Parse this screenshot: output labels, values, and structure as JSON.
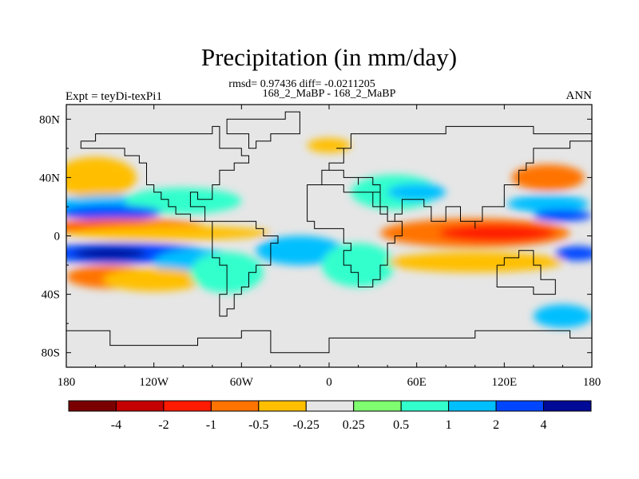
{
  "chart_data": {
    "type": "heatmap",
    "title": "Precipitation (in mm/day)",
    "subtitle_line1": "rmsd= 0.97436 diff= -0.0211205",
    "subtitle_line2": "168_2_MaBP - 168_2_MaBP",
    "left_label": "Expt = teyDi-texPi1",
    "right_label": "ANN",
    "x_range": [
      -180,
      180
    ],
    "y_range": [
      -90,
      90
    ],
    "x_ticks": [
      {
        "value": -180,
        "label": "180"
      },
      {
        "value": -120,
        "label": "120W"
      },
      {
        "value": -60,
        "label": "60W"
      },
      {
        "value": 0,
        "label": "0"
      },
      {
        "value": 60,
        "label": "60E"
      },
      {
        "value": 120,
        "label": "120E"
      },
      {
        "value": 180,
        "label": "180"
      }
    ],
    "y_ticks": [
      {
        "value": 80,
        "label": "80N"
      },
      {
        "value": 40,
        "label": "40N"
      },
      {
        "value": 0,
        "label": "0"
      },
      {
        "value": -40,
        "label": "40S"
      },
      {
        "value": -80,
        "label": "80S"
      }
    ],
    "colorbar": {
      "colors": [
        "#7a0000",
        "#c40000",
        "#ff1a00",
        "#ff7300",
        "#ffbf00",
        "#e6e6e6",
        "#7fff6f",
        "#33ffcc",
        "#00bfff",
        "#0046ff",
        "#000a96"
      ],
      "labels": [
        {
          "boundary": 1,
          "label": "-4"
        },
        {
          "boundary": 2,
          "label": "-2"
        },
        {
          "boundary": 3,
          "label": "-1"
        },
        {
          "boundary": 4,
          "label": "-0.5"
        },
        {
          "boundary": 5,
          "label": "-0.25"
        },
        {
          "boundary": 6,
          "label": "0.25"
        },
        {
          "boundary": 7,
          "label": "0.5"
        },
        {
          "boundary": 8,
          "label": "1"
        },
        {
          "boundary": 9,
          "label": "2"
        },
        {
          "boundary": 10,
          "label": "4"
        }
      ]
    },
    "anomaly_regions": [
      {
        "level": 3,
        "lon": -165,
        "lat": 38,
        "dlon": 18,
        "dlat": 10
      },
      {
        "level": 4,
        "lon": -160,
        "lat": 40,
        "dlon": 28,
        "dlat": 14
      },
      {
        "level": 8,
        "lon": -145,
        "lat": 22,
        "dlon": 45,
        "dlat": 6
      },
      {
        "level": 7,
        "lon": -100,
        "lat": 24,
        "dlon": 40,
        "dlat": 9
      },
      {
        "level": 9,
        "lon": -150,
        "lat": 16,
        "dlon": 35,
        "dlat": 5
      },
      {
        "level": 3,
        "lon": -140,
        "lat": 6,
        "dlon": 55,
        "dlat": 6
      },
      {
        "level": 2,
        "lon": -150,
        "lat": 6,
        "dlon": 30,
        "dlat": 3
      },
      {
        "level": 4,
        "lon": -110,
        "lat": 2,
        "dlon": 70,
        "dlat": 5
      },
      {
        "level": 9,
        "lon": -140,
        "lat": -12,
        "dlon": 60,
        "dlat": 7
      },
      {
        "level": 10,
        "lon": -150,
        "lat": -12,
        "dlon": 25,
        "dlat": 4
      },
      {
        "level": 8,
        "lon": -90,
        "lat": -18,
        "dlon": 30,
        "dlat": 9
      },
      {
        "level": 3,
        "lon": -150,
        "lat": -28,
        "dlon": 30,
        "dlat": 8
      },
      {
        "level": 4,
        "lon": -120,
        "lat": -30,
        "dlon": 35,
        "dlat": 8
      },
      {
        "level": 7,
        "lon": -70,
        "lat": -25,
        "dlon": 25,
        "dlat": 14
      },
      {
        "level": 8,
        "lon": -20,
        "lat": -10,
        "dlon": 30,
        "dlat": 10
      },
      {
        "level": 7,
        "lon": 20,
        "lat": -20,
        "dlon": 25,
        "dlat": 15
      },
      {
        "level": 7,
        "lon": 45,
        "lat": 30,
        "dlon": 30,
        "dlat": 12
      },
      {
        "level": 8,
        "lon": 60,
        "lat": 30,
        "dlon": 20,
        "dlat": 6
      },
      {
        "level": 3,
        "lon": 100,
        "lat": 2,
        "dlon": 65,
        "dlat": 10
      },
      {
        "level": 2,
        "lon": 115,
        "lat": 2,
        "dlon": 40,
        "dlat": 6
      },
      {
        "level": 4,
        "lon": 100,
        "lat": -18,
        "dlon": 60,
        "dlat": 7
      },
      {
        "level": 3,
        "lon": 150,
        "lat": 40,
        "dlon": 25,
        "dlat": 9
      },
      {
        "level": 8,
        "lon": 150,
        "lat": 22,
        "dlon": 28,
        "dlat": 6
      },
      {
        "level": 9,
        "lon": 160,
        "lat": 14,
        "dlon": 20,
        "dlat": 4
      },
      {
        "level": 9,
        "lon": 170,
        "lat": -12,
        "dlon": 15,
        "dlat": 5
      },
      {
        "level": 4,
        "lon": 0,
        "lat": 62,
        "dlon": 15,
        "dlat": 5
      },
      {
        "level": 8,
        "lon": 160,
        "lat": -55,
        "dlon": 20,
        "dlat": 8
      }
    ]
  }
}
